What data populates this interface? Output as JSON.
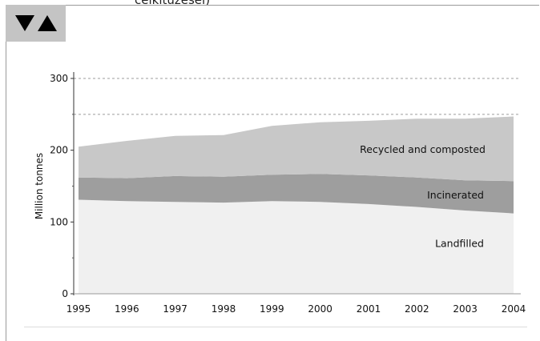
{
  "header": {
    "caption": "célkitűzései)"
  },
  "controls": {
    "toggle_icon_down": "triangle-down-icon",
    "toggle_icon_up": "triangle-up-icon"
  },
  "chart_data": {
    "type": "area",
    "stacked": true,
    "ylabel": "Million tonnes",
    "xlabel": "",
    "title": "",
    "x": [
      1995,
      1996,
      1997,
      1998,
      1999,
      2000,
      2001,
      2002,
      2003,
      2004
    ],
    "xtick_labels": [
      "1995",
      "1996",
      "1997",
      "1998",
      "1999",
      "2000",
      "2001",
      "2002",
      "2003",
      "2004"
    ],
    "ylim": [
      0,
      300
    ],
    "yticks": [
      0,
      100,
      200,
      300
    ],
    "ytick_labels": [
      "0",
      "100",
      "200",
      "300"
    ],
    "grid": "dashed at 250 and 300",
    "series": [
      {
        "name": "Landfilled",
        "color": "#f0f0f0",
        "values": [
          131,
          129,
          128,
          127,
          129,
          128,
          125,
          121,
          116,
          112
        ]
      },
      {
        "name": "Incinerated",
        "color": "#9e9e9e",
        "values": [
          31,
          32,
          36,
          36,
          37,
          39,
          40,
          41,
          42,
          45
        ]
      },
      {
        "name": "Recycled and composted",
        "color": "#c8c8c8",
        "values": [
          43,
          52,
          56,
          58,
          68,
          72,
          76,
          82,
          86,
          90
        ]
      }
    ]
  }
}
